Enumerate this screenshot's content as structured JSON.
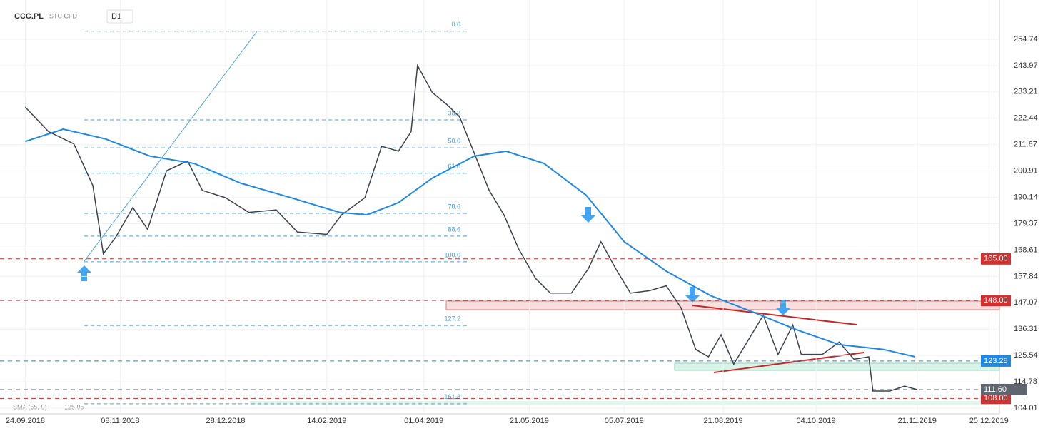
{
  "header": {
    "symbol": "CCC.PL",
    "instrument": "STC CFD",
    "interval": "D1"
  },
  "chart_data": {
    "type": "line",
    "series": [
      {
        "color": "#3d4450",
        "x": [
          "24.09.2018",
          "05.10.2018",
          "17.10.2018",
          "26.10.2018",
          "31.10.2018",
          "06.11.2018",
          "14.11.2018",
          "21.11.2018",
          "30.11.2018",
          "10.12.2018",
          "17.12.2018",
          "28.12.2018",
          "08.01.2019",
          "21.01.2019",
          "31.01.2019",
          "14.02.2019",
          "21.02.2019",
          "04.03.2019",
          "12.03.2019",
          "20.03.2019",
          "26.03.2019",
          "29.03.2019",
          "05.04.2019",
          "12.04.2019",
          "18.04.2019",
          "25.04.2019",
          "02.05.2019",
          "09.05.2019",
          "16.05.2019",
          "24.05.2019",
          "31.05.2019",
          "10.06.2019",
          "18.06.2019",
          "24.06.2019",
          "01.07.2019",
          "08.07.2019",
          "17.07.2019",
          "25.07.2019",
          "01.08.2019",
          "08.08.2019",
          "14.08.2019",
          "20.08.2019",
          "26.08.2019",
          "02.09.2019",
          "09.09.2019",
          "16.09.2019",
          "23.09.2019",
          "27.09.2019",
          "07.10.2019",
          "15.10.2019",
          "22.10.2019",
          "29.10.2019",
          "31.10.2019",
          "08.11.2019",
          "15.11.2019",
          "21.11.2019"
        ],
        "values": [
          227,
          217,
          212,
          195,
          167,
          174,
          186,
          177,
          201,
          205,
          193,
          190,
          184,
          185,
          176,
          175,
          183,
          190,
          211,
          209,
          217,
          244,
          233,
          228,
          223,
          208,
          193,
          183,
          169,
          157,
          151,
          151,
          161,
          172,
          161,
          151,
          152,
          154,
          145,
          128,
          125,
          134,
          122,
          132,
          142,
          126,
          138,
          126,
          126,
          131,
          124,
          125,
          111,
          111,
          113,
          111.6
        ]
      },
      {
        "name": "SMA (55, 0)",
        "last": 125.05,
        "color": "#1e88e5",
        "x": [
          "24.09.2018",
          "12.10.2018",
          "01.11.2018",
          "22.11.2018",
          "13.12.2018",
          "04.01.2019",
          "28.01.2019",
          "20.02.2019",
          "05.03.2019",
          "20.03.2019",
          "05.04.2019",
          "25.04.2019",
          "10.05.2019",
          "28.05.2019",
          "17.06.2019",
          "05.07.2019",
          "25.07.2019",
          "15.08.2019",
          "05.09.2019",
          "25.09.2019",
          "15.10.2019",
          "05.11.2019",
          "20.11.2019"
        ],
        "values": [
          213,
          218,
          214,
          207,
          204,
          196,
          190,
          184,
          183,
          188,
          198,
          207,
          209,
          204,
          191,
          172,
          160,
          150,
          143,
          136,
          130,
          128,
          125
        ]
      }
    ],
    "xlim": [
      "12.09.2018",
      "30.12.2019"
    ],
    "xticks": [
      "24.09.2018",
      "08.11.2018",
      "28.12.2018",
      "14.02.2019",
      "01.04.2019",
      "21.05.2019",
      "05.07.2019",
      "21.08.2019",
      "04.10.2019",
      "21.11.2019",
      "25.12.2019"
    ],
    "ylim": [
      101.68,
      270.77
    ],
    "yticks": [
      254.74,
      243.97,
      233.21,
      222.44,
      211.67,
      200.91,
      190.14,
      179.37,
      168.61,
      157.84,
      147.07,
      136.31,
      125.54,
      114.78,
      104.01
    ],
    "levels": [
      {
        "value": 165,
        "label": "165.00",
        "color": "#d32f2f"
      },
      {
        "value": 148,
        "label": "148.00",
        "color": "#d32f2f"
      },
      {
        "value": 123.28,
        "label": "123.28",
        "color": "#1e88e5"
      },
      {
        "value": 108,
        "label": "108.00",
        "color": "#d32f2f"
      }
    ],
    "current": {
      "value": 111.6,
      "label": "111.60",
      "color": "#5f6670"
    },
    "fib": {
      "color": "#4aa3df",
      "levels": [
        {
          "label": "0.0",
          "price": 258
        },
        {
          "label": "38.2",
          "price": 221.8
        },
        {
          "label": "50.0",
          "price": 210.4
        },
        {
          "label": "61.8",
          "price": 200
        },
        {
          "label": "78.6",
          "price": 183.6
        },
        {
          "label": "88.6",
          "price": 174.3
        },
        {
          "label": "100.0",
          "price": 163.8
        },
        {
          "label": "127.2",
          "price": 137.8
        },
        {
          "label": "161.8",
          "price": 105.8
        }
      ]
    }
  }
}
